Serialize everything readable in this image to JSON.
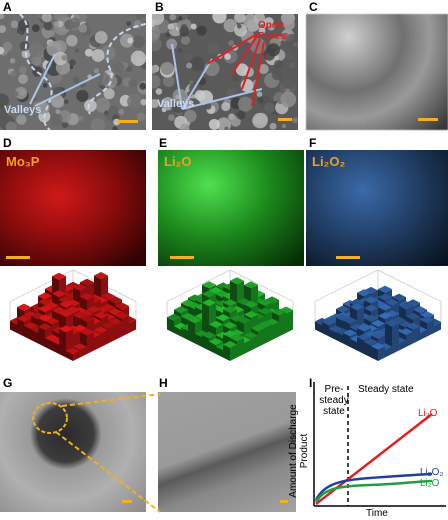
{
  "panels": [
    {
      "label": "A",
      "annotation": "Valleys"
    },
    {
      "label": "B",
      "annotation": "Valleys",
      "pores": "Open Pores"
    },
    {
      "label": "C"
    },
    {
      "label": "D",
      "species": "Mo₃P"
    },
    {
      "label": "E",
      "species": "Li₂O"
    },
    {
      "label": "F",
      "species": "Li₂O₂"
    },
    {
      "label": "G"
    },
    {
      "label": "H"
    },
    {
      "label": "I",
      "regions": [
        "Pre-steady state",
        "Steady state"
      ],
      "curves": [
        "Li₂O",
        "Li₂O₂",
        "Li₂O"
      ],
      "y_axis": "Amount of Discharge Product",
      "x_axis": "Time"
    }
  ]
}
